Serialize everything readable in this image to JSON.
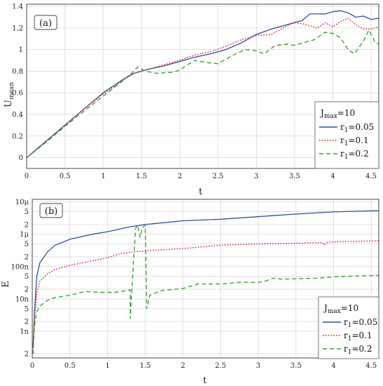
{
  "chart_data": [
    {
      "type": "line",
      "panel_label": "(a)",
      "xlabel": "t",
      "ylabel_main": "U",
      "ylabel_sub": "mean",
      "xlim": [
        0,
        4.6
      ],
      "ylim": [
        -0.1,
        1.42
      ],
      "xticks": [
        "0",
        "0.5",
        "1",
        "1.5",
        "2",
        "2.5",
        "3",
        "3.5",
        "4",
        "4.5"
      ],
      "xtick_values": [
        0,
        0.5,
        1,
        1.5,
        2,
        2.5,
        3,
        3.5,
        4,
        4.5
      ],
      "yticks": [
        "0",
        "0.2",
        "0.4",
        "0.6",
        "0.8",
        "1",
        "1.2",
        "1.4"
      ],
      "ytick_values": [
        0,
        0.2,
        0.4,
        0.6,
        0.8,
        1.0,
        1.2,
        1.4
      ],
      "grid": true,
      "legend_placement": "bottom-right",
      "legend_title_main": "J",
      "legend_title_sub": "max",
      "legend_title_rest": "=10",
      "series": [
        {
          "name_main": "r",
          "name_sub": "1",
          "name_rest": "=0.05",
          "color": "#2c4fa0",
          "dash": "solid",
          "points": [
            [
              0,
              0
            ],
            [
              0.25,
              0.15
            ],
            [
              0.5,
              0.3
            ],
            [
              0.75,
              0.45
            ],
            [
              1.0,
              0.6
            ],
            [
              1.25,
              0.72
            ],
            [
              1.4,
              0.78
            ],
            [
              1.6,
              0.82
            ],
            [
              1.8,
              0.85
            ],
            [
              2.0,
              0.89
            ],
            [
              2.2,
              0.93
            ],
            [
              2.4,
              0.96
            ],
            [
              2.6,
              1.0
            ],
            [
              2.8,
              1.06
            ],
            [
              3.0,
              1.14
            ],
            [
              3.2,
              1.19
            ],
            [
              3.4,
              1.23
            ],
            [
              3.6,
              1.27
            ],
            [
              3.7,
              1.33
            ],
            [
              3.9,
              1.33
            ],
            [
              4.0,
              1.35
            ],
            [
              4.1,
              1.36
            ],
            [
              4.2,
              1.34
            ],
            [
              4.3,
              1.3
            ],
            [
              4.4,
              1.31
            ],
            [
              4.5,
              1.28
            ],
            [
              4.6,
              1.29
            ]
          ]
        },
        {
          "name_main": "r",
          "name_sub": "1",
          "name_rest": "=0.1",
          "color": "#e0161e",
          "dash": "dotted",
          "points": [
            [
              0,
              0
            ],
            [
              0.25,
              0.15
            ],
            [
              0.5,
              0.3
            ],
            [
              0.75,
              0.45
            ],
            [
              1.0,
              0.59
            ],
            [
              1.25,
              0.71
            ],
            [
              1.4,
              0.78
            ],
            [
              1.6,
              0.82
            ],
            [
              1.8,
              0.86
            ],
            [
              2.0,
              0.9
            ],
            [
              2.2,
              0.95
            ],
            [
              2.4,
              0.98
            ],
            [
              2.6,
              1.03
            ],
            [
              2.8,
              1.09
            ],
            [
              3.0,
              1.13
            ],
            [
              3.2,
              1.14
            ],
            [
              3.4,
              1.22
            ],
            [
              3.5,
              1.25
            ],
            [
              3.6,
              1.24
            ],
            [
              3.8,
              1.2
            ],
            [
              3.9,
              1.25
            ],
            [
              4.0,
              1.21
            ],
            [
              4.1,
              1.26
            ],
            [
              4.2,
              1.29
            ],
            [
              4.3,
              1.23
            ],
            [
              4.4,
              1.19
            ],
            [
              4.5,
              1.19
            ],
            [
              4.6,
              1.21
            ]
          ]
        },
        {
          "name_main": "r",
          "name_sub": "1",
          "name_rest": "=0.2",
          "color": "#3aa335",
          "dash": "dashed",
          "points": [
            [
              0,
              0
            ],
            [
              0.25,
              0.14
            ],
            [
              0.5,
              0.29
            ],
            [
              0.75,
              0.43
            ],
            [
              1.0,
              0.57
            ],
            [
              1.2,
              0.68
            ],
            [
              1.4,
              0.8
            ],
            [
              1.45,
              0.84
            ],
            [
              1.55,
              0.8
            ],
            [
              1.7,
              0.78
            ],
            [
              1.9,
              0.79
            ],
            [
              2.0,
              0.81
            ],
            [
              2.1,
              0.86
            ],
            [
              2.2,
              0.9
            ],
            [
              2.35,
              0.88
            ],
            [
              2.5,
              0.87
            ],
            [
              2.7,
              0.95
            ],
            [
              2.85,
              1.0
            ],
            [
              3.0,
              0.99
            ],
            [
              3.1,
              0.96
            ],
            [
              3.25,
              1.04
            ],
            [
              3.4,
              1.05
            ],
            [
              3.5,
              1.04
            ],
            [
              3.6,
              1.06
            ],
            [
              3.75,
              1.09
            ],
            [
              3.9,
              1.16
            ],
            [
              4.0,
              1.15
            ],
            [
              4.1,
              1.11
            ],
            [
              4.2,
              1.0
            ],
            [
              4.28,
              0.96
            ],
            [
              4.4,
              1.08
            ],
            [
              4.47,
              1.18
            ],
            [
              4.55,
              1.07
            ],
            [
              4.6,
              1.05
            ]
          ]
        }
      ]
    },
    {
      "type": "line",
      "panel_label": "(b)",
      "xlabel": "t",
      "ylabel": "E",
      "yscale": "log",
      "xlim": [
        0,
        4.6
      ],
      "ylim": [
        1.5e-10,
        1.2e-05
      ],
      "xticks": [
        "0",
        "0.5",
        "1",
        "1.5",
        "2",
        "2.5",
        "3",
        "3.5",
        "4",
        "4.5"
      ],
      "xtick_values": [
        0,
        0.5,
        1,
        1.5,
        2,
        2.5,
        3,
        3.5,
        4,
        4.5
      ],
      "yticks": [
        "2",
        "1n",
        "2",
        "5",
        "10n",
        "2",
        "5",
        "100n",
        "2",
        "5",
        "1μ",
        "2",
        "5",
        "10μ"
      ],
      "ytick_values": [
        2e-10,
        1e-09,
        2e-09,
        5e-09,
        1e-08,
        2e-08,
        5e-08,
        1e-07,
        2e-07,
        5e-07,
        1e-06,
        2e-06,
        5e-06,
        1e-05
      ],
      "grid": true,
      "legend_placement": "bottom-right",
      "legend_title_main": "J",
      "legend_title_sub": "max",
      "legend_title_rest": "=10",
      "series": [
        {
          "name_main": "r",
          "name_sub": "1",
          "name_rest": "=0.05",
          "color": "#2c4fa0",
          "dash": "solid",
          "points": [
            [
              0.01,
              3e-10
            ],
            [
              0.03,
              4e-09
            ],
            [
              0.06,
              5e-08
            ],
            [
              0.1,
              1.3e-07
            ],
            [
              0.2,
              2.8e-07
            ],
            [
              0.3,
              4.5e-07
            ],
            [
              0.5,
              7e-07
            ],
            [
              0.8,
              1e-06
            ],
            [
              1.0,
              1.2e-06
            ],
            [
              1.3,
              1.7e-06
            ],
            [
              1.5,
              2e-06
            ],
            [
              2.0,
              2.6e-06
            ],
            [
              2.5,
              2.9e-06
            ],
            [
              3.0,
              3.5e-06
            ],
            [
              3.5,
              4.2e-06
            ],
            [
              4.0,
              4.9e-06
            ],
            [
              4.5,
              5.3e-06
            ],
            [
              4.6,
              5.4e-06
            ]
          ]
        },
        {
          "name_main": "r",
          "name_sub": "1",
          "name_rest": "=0.1",
          "color": "#e0161e",
          "dash": "dotted",
          "points": [
            [
              0.01,
              3e-10
            ],
            [
              0.03,
              2.5e-09
            ],
            [
              0.06,
              1.5e-08
            ],
            [
              0.1,
              3.5e-08
            ],
            [
              0.2,
              6e-08
            ],
            [
              0.3,
              8e-08
            ],
            [
              0.5,
              1.1e-07
            ],
            [
              0.8,
              1.5e-07
            ],
            [
              1.0,
              1.9e-07
            ],
            [
              1.2,
              2.6e-07
            ],
            [
              1.5,
              3.1e-07
            ],
            [
              2.0,
              3.6e-07
            ],
            [
              2.5,
              4.6e-07
            ],
            [
              3.0,
              5e-07
            ],
            [
              3.5,
              5.3e-07
            ],
            [
              3.85,
              5.5e-07
            ],
            [
              3.88,
              4.7e-07
            ],
            [
              3.92,
              5.6e-07
            ],
            [
              4.0,
              5.8e-07
            ],
            [
              4.5,
              6.2e-07
            ],
            [
              4.6,
              6.3e-07
            ]
          ]
        },
        {
          "name_main": "r",
          "name_sub": "1",
          "name_rest": "=0.2",
          "color": "#3aa335",
          "dash": "dashed",
          "points": [
            [
              0.01,
              2e-10
            ],
            [
              0.03,
              1.5e-09
            ],
            [
              0.06,
              4e-09
            ],
            [
              0.1,
              6e-09
            ],
            [
              0.2,
              9e-09
            ],
            [
              0.3,
              1.1e-08
            ],
            [
              0.5,
              1.3e-08
            ],
            [
              0.7,
              1.7e-08
            ],
            [
              0.9,
              1.6e-08
            ],
            [
              1.1,
              1.6e-08
            ],
            [
              1.3,
              1.9e-08
            ],
            [
              1.3,
              2.5e-09
            ],
            [
              1.37,
              1.5e-06
            ],
            [
              1.4,
              1.9e-06
            ],
            [
              1.43,
              8e-07
            ],
            [
              1.46,
              1.6e-06
            ],
            [
              1.5,
              1.9e-06
            ],
            [
              1.52,
              5e-09
            ],
            [
              1.56,
              1.3e-08
            ],
            [
              1.7,
              1.8e-08
            ],
            [
              2.0,
              2.1e-08
            ],
            [
              2.2,
              2.9e-08
            ],
            [
              2.5,
              2.9e-08
            ],
            [
              2.8,
              3.3e-08
            ],
            [
              3.0,
              3.2e-08
            ],
            [
              3.1,
              3.6e-08
            ],
            [
              3.2,
              4.4e-08
            ],
            [
              3.3,
              4.1e-08
            ],
            [
              3.5,
              4.2e-08
            ],
            [
              3.8,
              4.4e-08
            ],
            [
              4.0,
              4.8e-08
            ],
            [
              4.3,
              5.1e-08
            ],
            [
              4.6,
              5.3e-08
            ]
          ]
        }
      ]
    }
  ]
}
